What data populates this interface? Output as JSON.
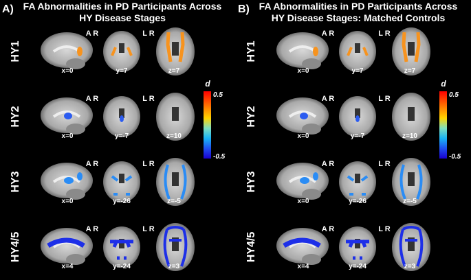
{
  "panels": [
    {
      "label": "A)",
      "title": [
        "FA Abnormalities in PD Participants Across",
        "HY Disease Stages"
      ],
      "rows": [
        {
          "stage": "HY1",
          "orientation": [
            "A R",
            "L R"
          ],
          "coords": [
            "x=0",
            "y=7",
            "z=7"
          ],
          "color": "#f7931e"
        },
        {
          "stage": "HY2",
          "orientation": [
            "A R",
            "L R"
          ],
          "coords": [
            "x=0",
            "y=-7",
            "z=10"
          ],
          "color": "#2c5cf0"
        },
        {
          "stage": "HY3",
          "orientation": [
            "A R",
            "L R"
          ],
          "coords": [
            "x=0",
            "y=-26",
            "z=-5"
          ],
          "color": "#2a8cf5"
        },
        {
          "stage": "HY4/5",
          "orientation": [
            "A R",
            "L R"
          ],
          "coords": [
            "x=4",
            "y=-24",
            "z=3"
          ],
          "color": "#1d2fe8"
        }
      ],
      "colorbar": {
        "label": "d",
        "max": "0.5",
        "min": "-0.5"
      }
    },
    {
      "label": "B)",
      "title": [
        "FA Abnormalities in PD Participants Across",
        "HY Disease Stages: Matched Controls"
      ],
      "rows": [
        {
          "stage": "HY1",
          "orientation": [
            "A R",
            "L R"
          ],
          "coords": [
            "x=0",
            "y=7",
            "z=7"
          ],
          "color": "#f7931e"
        },
        {
          "stage": "HY2",
          "orientation": [
            "A R",
            "L R"
          ],
          "coords": [
            "x=0",
            "y=-7",
            "z=10"
          ],
          "color": "#2c5cf0"
        },
        {
          "stage": "HY3",
          "orientation": [
            "A R",
            "L R"
          ],
          "coords": [
            "x=0",
            "y=-26",
            "z=-5"
          ],
          "color": "#2a8cf5"
        },
        {
          "stage": "HY4/5",
          "orientation": [
            "A R",
            "L R"
          ],
          "coords": [
            "x=4",
            "y=-24",
            "z=3"
          ],
          "color": "#1d2fe8"
        }
      ],
      "colorbar": {
        "label": "d",
        "max": "0.5",
        "min": "-0.5"
      }
    }
  ]
}
